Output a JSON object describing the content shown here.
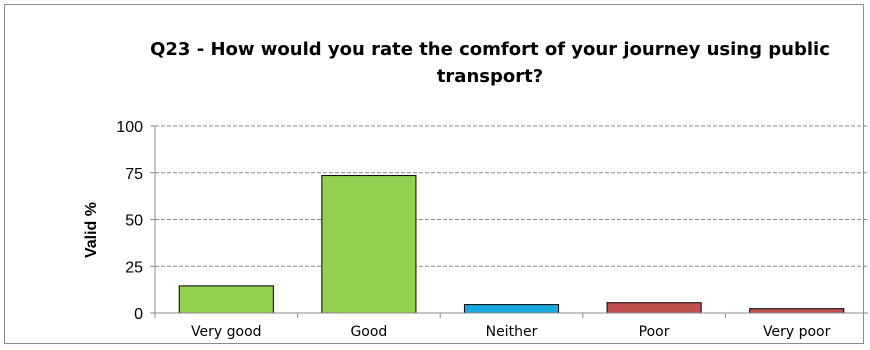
{
  "chart_data": {
    "type": "bar",
    "title": "Q23 - How would you rate the comfort of your journey using public transport?",
    "xlabel": "",
    "ylabel": "Valid %",
    "categories": [
      "Very good",
      "Good",
      "Neither",
      "Poor",
      "Very poor"
    ],
    "values": [
      14.5,
      73.5,
      4.5,
      5.5,
      2.3
    ],
    "colors": [
      "#92d050",
      "#92d050",
      "#17a8e0",
      "#c0504d",
      "#c0504d"
    ],
    "ylim": [
      0,
      100
    ],
    "yticks": [
      0,
      25,
      50,
      75,
      100
    ],
    "grid": true,
    "legend": "none"
  }
}
